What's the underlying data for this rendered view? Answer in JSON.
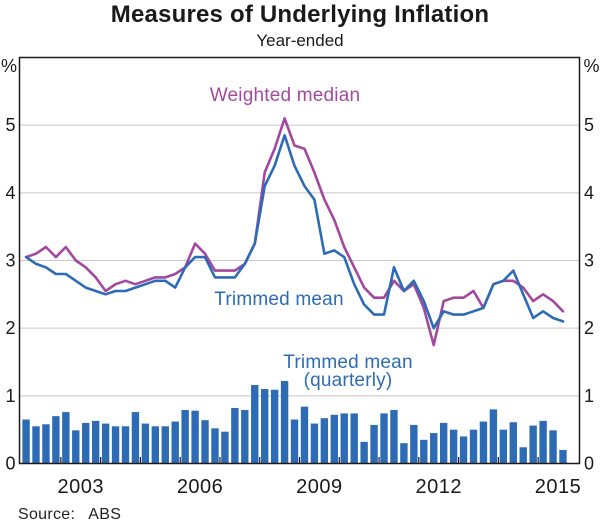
{
  "chart_data": {
    "type": "bar+line",
    "title": "Measures of Underlying Inflation",
    "subtitle": "Year-ended",
    "legend_position": "inline-annotations",
    "grid": true,
    "y_axis": {
      "min": 0,
      "max": 6,
      "ticks": [
        0,
        1,
        2,
        3,
        4,
        5
      ],
      "unit_label": "%",
      "sides": "both"
    },
    "x_axis": {
      "tick_years": [
        2003,
        2004,
        2005,
        2006,
        2007,
        2008,
        2009,
        2010,
        2011,
        2012,
        2013,
        2014,
        2015
      ],
      "year_labels": [
        "2003",
        "2006",
        "2009",
        "2012",
        "2015"
      ]
    },
    "quarters": [
      "2002 Q1",
      "2002 Q2",
      "2002 Q3",
      "2002 Q4",
      "2003 Q1",
      "2003 Q2",
      "2003 Q3",
      "2003 Q4",
      "2004 Q1",
      "2004 Q2",
      "2004 Q3",
      "2004 Q4",
      "2005 Q1",
      "2005 Q2",
      "2005 Q3",
      "2005 Q4",
      "2006 Q1",
      "2006 Q2",
      "2006 Q3",
      "2006 Q4",
      "2007 Q1",
      "2007 Q2",
      "2007 Q3",
      "2007 Q4",
      "2008 Q1",
      "2008 Q2",
      "2008 Q3",
      "2008 Q4",
      "2009 Q1",
      "2009 Q2",
      "2009 Q3",
      "2009 Q4",
      "2010 Q1",
      "2010 Q2",
      "2010 Q3",
      "2010 Q4",
      "2011 Q1",
      "2011 Q2",
      "2011 Q3",
      "2011 Q4",
      "2012 Q1",
      "2012 Q2",
      "2012 Q3",
      "2012 Q4",
      "2013 Q1",
      "2013 Q2",
      "2013 Q3",
      "2013 Q4",
      "2014 Q1",
      "2014 Q2",
      "2014 Q3",
      "2014 Q4",
      "2015 Q1",
      "2015 Q2",
      "2015 Q3"
    ],
    "series": [
      {
        "name": "Weighted median",
        "type": "line",
        "color": "#a2499e",
        "values": [
          3.05,
          3.1,
          3.2,
          3.05,
          3.2,
          3.0,
          2.9,
          2.75,
          2.55,
          2.65,
          2.7,
          2.65,
          2.7,
          2.75,
          2.75,
          2.8,
          2.9,
          3.25,
          3.1,
          2.85,
          2.85,
          2.85,
          2.95,
          3.25,
          4.3,
          4.65,
          5.1,
          4.7,
          4.65,
          4.3,
          3.9,
          3.6,
          3.2,
          2.9,
          2.6,
          2.45,
          2.45,
          2.7,
          2.55,
          2.65,
          2.3,
          1.75,
          2.4,
          2.45,
          2.45,
          2.55,
          2.3,
          2.65,
          2.7,
          2.7,
          2.6,
          2.4,
          2.5,
          2.4,
          2.25
        ]
      },
      {
        "name": "Trimmed mean",
        "type": "line",
        "color": "#2d6cb5",
        "values": [
          3.05,
          2.95,
          2.9,
          2.8,
          2.8,
          2.7,
          2.6,
          2.55,
          2.5,
          2.55,
          2.55,
          2.6,
          2.65,
          2.7,
          2.7,
          2.6,
          2.9,
          3.05,
          3.05,
          2.75,
          2.75,
          2.75,
          2.95,
          3.25,
          4.1,
          4.4,
          4.85,
          4.4,
          4.1,
          3.9,
          3.1,
          3.15,
          3.05,
          2.65,
          2.35,
          2.2,
          2.2,
          2.9,
          2.55,
          2.7,
          2.4,
          2.0,
          2.25,
          2.2,
          2.2,
          2.25,
          2.3,
          2.65,
          2.7,
          2.85,
          2.5,
          2.15,
          2.25,
          2.15,
          2.1
        ]
      },
      {
        "name": "Trimmed mean (quarterly)",
        "type": "bar",
        "color": "#2d6cb5",
        "values": [
          0.65,
          0.55,
          0.58,
          0.7,
          0.76,
          0.49,
          0.6,
          0.63,
          0.59,
          0.55,
          0.55,
          0.76,
          0.59,
          0.55,
          0.55,
          0.62,
          0.79,
          0.78,
          0.64,
          0.52,
          0.47,
          0.82,
          0.79,
          1.16,
          1.1,
          1.09,
          1.22,
          0.65,
          0.84,
          0.59,
          0.67,
          0.72,
          0.74,
          0.74,
          0.32,
          0.57,
          0.74,
          0.79,
          0.3,
          0.57,
          0.35,
          0.45,
          0.6,
          0.5,
          0.4,
          0.5,
          0.62,
          0.8,
          0.5,
          0.61,
          0.24,
          0.56,
          0.63,
          0.49,
          0.2
        ]
      }
    ]
  },
  "annotations": {
    "weighted_median": "Weighted median",
    "trimmed_mean": "Trimmed mean",
    "quarterly_line1": "Trimmed mean",
    "quarterly_line2": "(quarterly)"
  },
  "footer": {
    "source_label": "Source:",
    "source_value": "ABS"
  },
  "colors": {
    "blue": "#2d6cb5",
    "purple": "#a2499e",
    "grid": "#c8c8c8",
    "axis": "#1a1a1a"
  }
}
